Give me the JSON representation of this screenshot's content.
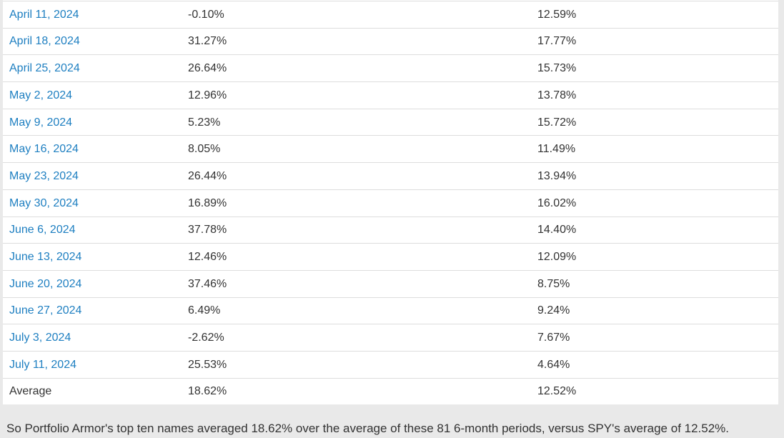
{
  "table": {
    "rows": [
      {
        "label": "April 11, 2024",
        "link": true,
        "portfolio_return": "-0.10%",
        "spy_return": "12.59%"
      },
      {
        "label": "April 18, 2024",
        "link": true,
        "portfolio_return": "31.27%",
        "spy_return": "17.77%"
      },
      {
        "label": "April 25, 2024",
        "link": true,
        "portfolio_return": "26.64%",
        "spy_return": "15.73%"
      },
      {
        "label": "May 2, 2024",
        "link": true,
        "portfolio_return": "12.96%",
        "spy_return": "13.78%"
      },
      {
        "label": "May 9, 2024",
        "link": true,
        "portfolio_return": "5.23%",
        "spy_return": "15.72%"
      },
      {
        "label": "May 16, 2024",
        "link": true,
        "portfolio_return": "8.05%",
        "spy_return": "11.49%"
      },
      {
        "label": "May 23, 2024",
        "link": true,
        "portfolio_return": "26.44%",
        "spy_return": "13.94%"
      },
      {
        "label": "May 30, 2024",
        "link": true,
        "portfolio_return": "16.89%",
        "spy_return": "16.02%"
      },
      {
        "label": "June 6, 2024",
        "link": true,
        "portfolio_return": "37.78%",
        "spy_return": "14.40%"
      },
      {
        "label": "June 13, 2024",
        "link": true,
        "portfolio_return": "12.46%",
        "spy_return": "12.09%"
      },
      {
        "label": "June 20, 2024",
        "link": true,
        "portfolio_return": "37.46%",
        "spy_return": "8.75%"
      },
      {
        "label": "June 27, 2024",
        "link": true,
        "portfolio_return": "6.49%",
        "spy_return": "9.24%"
      },
      {
        "label": "July 3, 2024",
        "link": true,
        "portfolio_return": "-2.62%",
        "spy_return": "7.67%"
      },
      {
        "label": "July 11, 2024",
        "link": true,
        "portfolio_return": "25.53%",
        "spy_return": "4.64%"
      },
      {
        "label": "Average",
        "link": false,
        "portfolio_return": "18.62%",
        "spy_return": "12.52%"
      }
    ]
  },
  "footer": {
    "text": "So Portfolio Armor's top ten names averaged 18.62% over the average of these 81 6-month periods, versus SPY's average of 12.52%."
  },
  "colors": {
    "link_blue": "#1e7fc1",
    "body_text": "#333333",
    "row_border": "#dddddd",
    "table_background": "#ffffff",
    "page_background": "#e9e9e9"
  }
}
